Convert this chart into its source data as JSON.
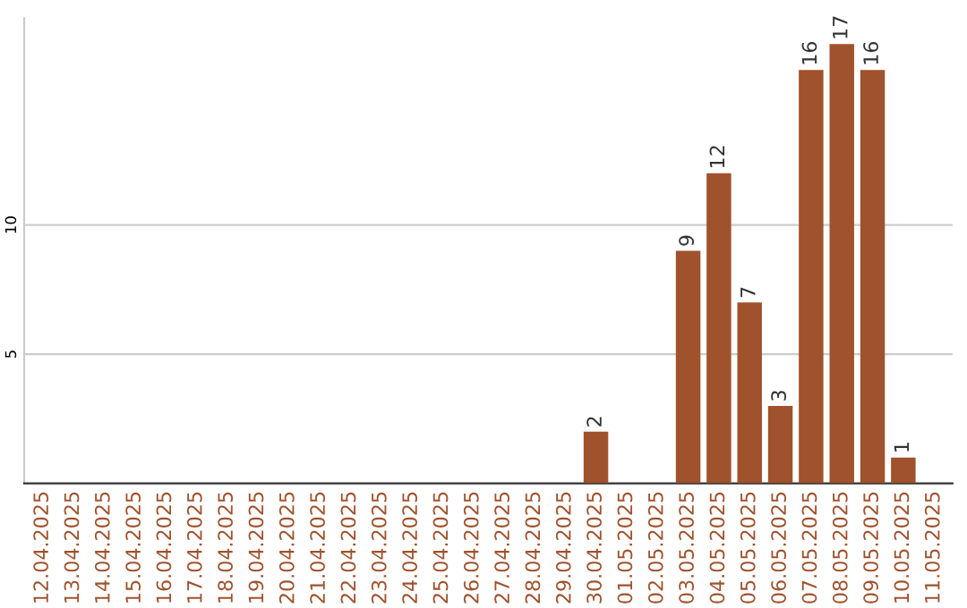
{
  "chart_data": {
    "type": "bar",
    "categories": [
      "12.04.2025",
      "13.04.2025",
      "14.04.2025",
      "15.04.2025",
      "16.04.2025",
      "17.04.2025",
      "18.04.2025",
      "19.04.2025",
      "20.04.2025",
      "21.04.2025",
      "22.04.2025",
      "23.04.2025",
      "24.04.2025",
      "25.04.2025",
      "26.04.2025",
      "27.04.2025",
      "28.04.2025",
      "29.04.2025",
      "30.04.2025",
      "01.05.2025",
      "02.05.2025",
      "03.05.2025",
      "04.05.2025",
      "05.05.2025",
      "06.05.2025",
      "07.05.2025",
      "08.05.2025",
      "09.05.2025",
      "10.05.2025",
      "11.05.2025"
    ],
    "values": [
      0,
      0,
      0,
      0,
      0,
      0,
      0,
      0,
      0,
      0,
      0,
      0,
      0,
      0,
      0,
      0,
      0,
      0,
      2,
      0,
      0,
      9,
      12,
      7,
      3,
      16,
      17,
      16,
      1,
      0
    ],
    "value_labels": [
      null,
      null,
      null,
      null,
      null,
      null,
      null,
      null,
      null,
      null,
      null,
      null,
      null,
      null,
      null,
      null,
      null,
      null,
      "2",
      null,
      null,
      "9",
      "12",
      "7",
      "3",
      "16",
      "17",
      "16",
      "1",
      null
    ],
    "color": "#a0522d",
    "ylim": [
      0,
      18
    ],
    "yticks": [
      5,
      10
    ],
    "grid": "y"
  }
}
